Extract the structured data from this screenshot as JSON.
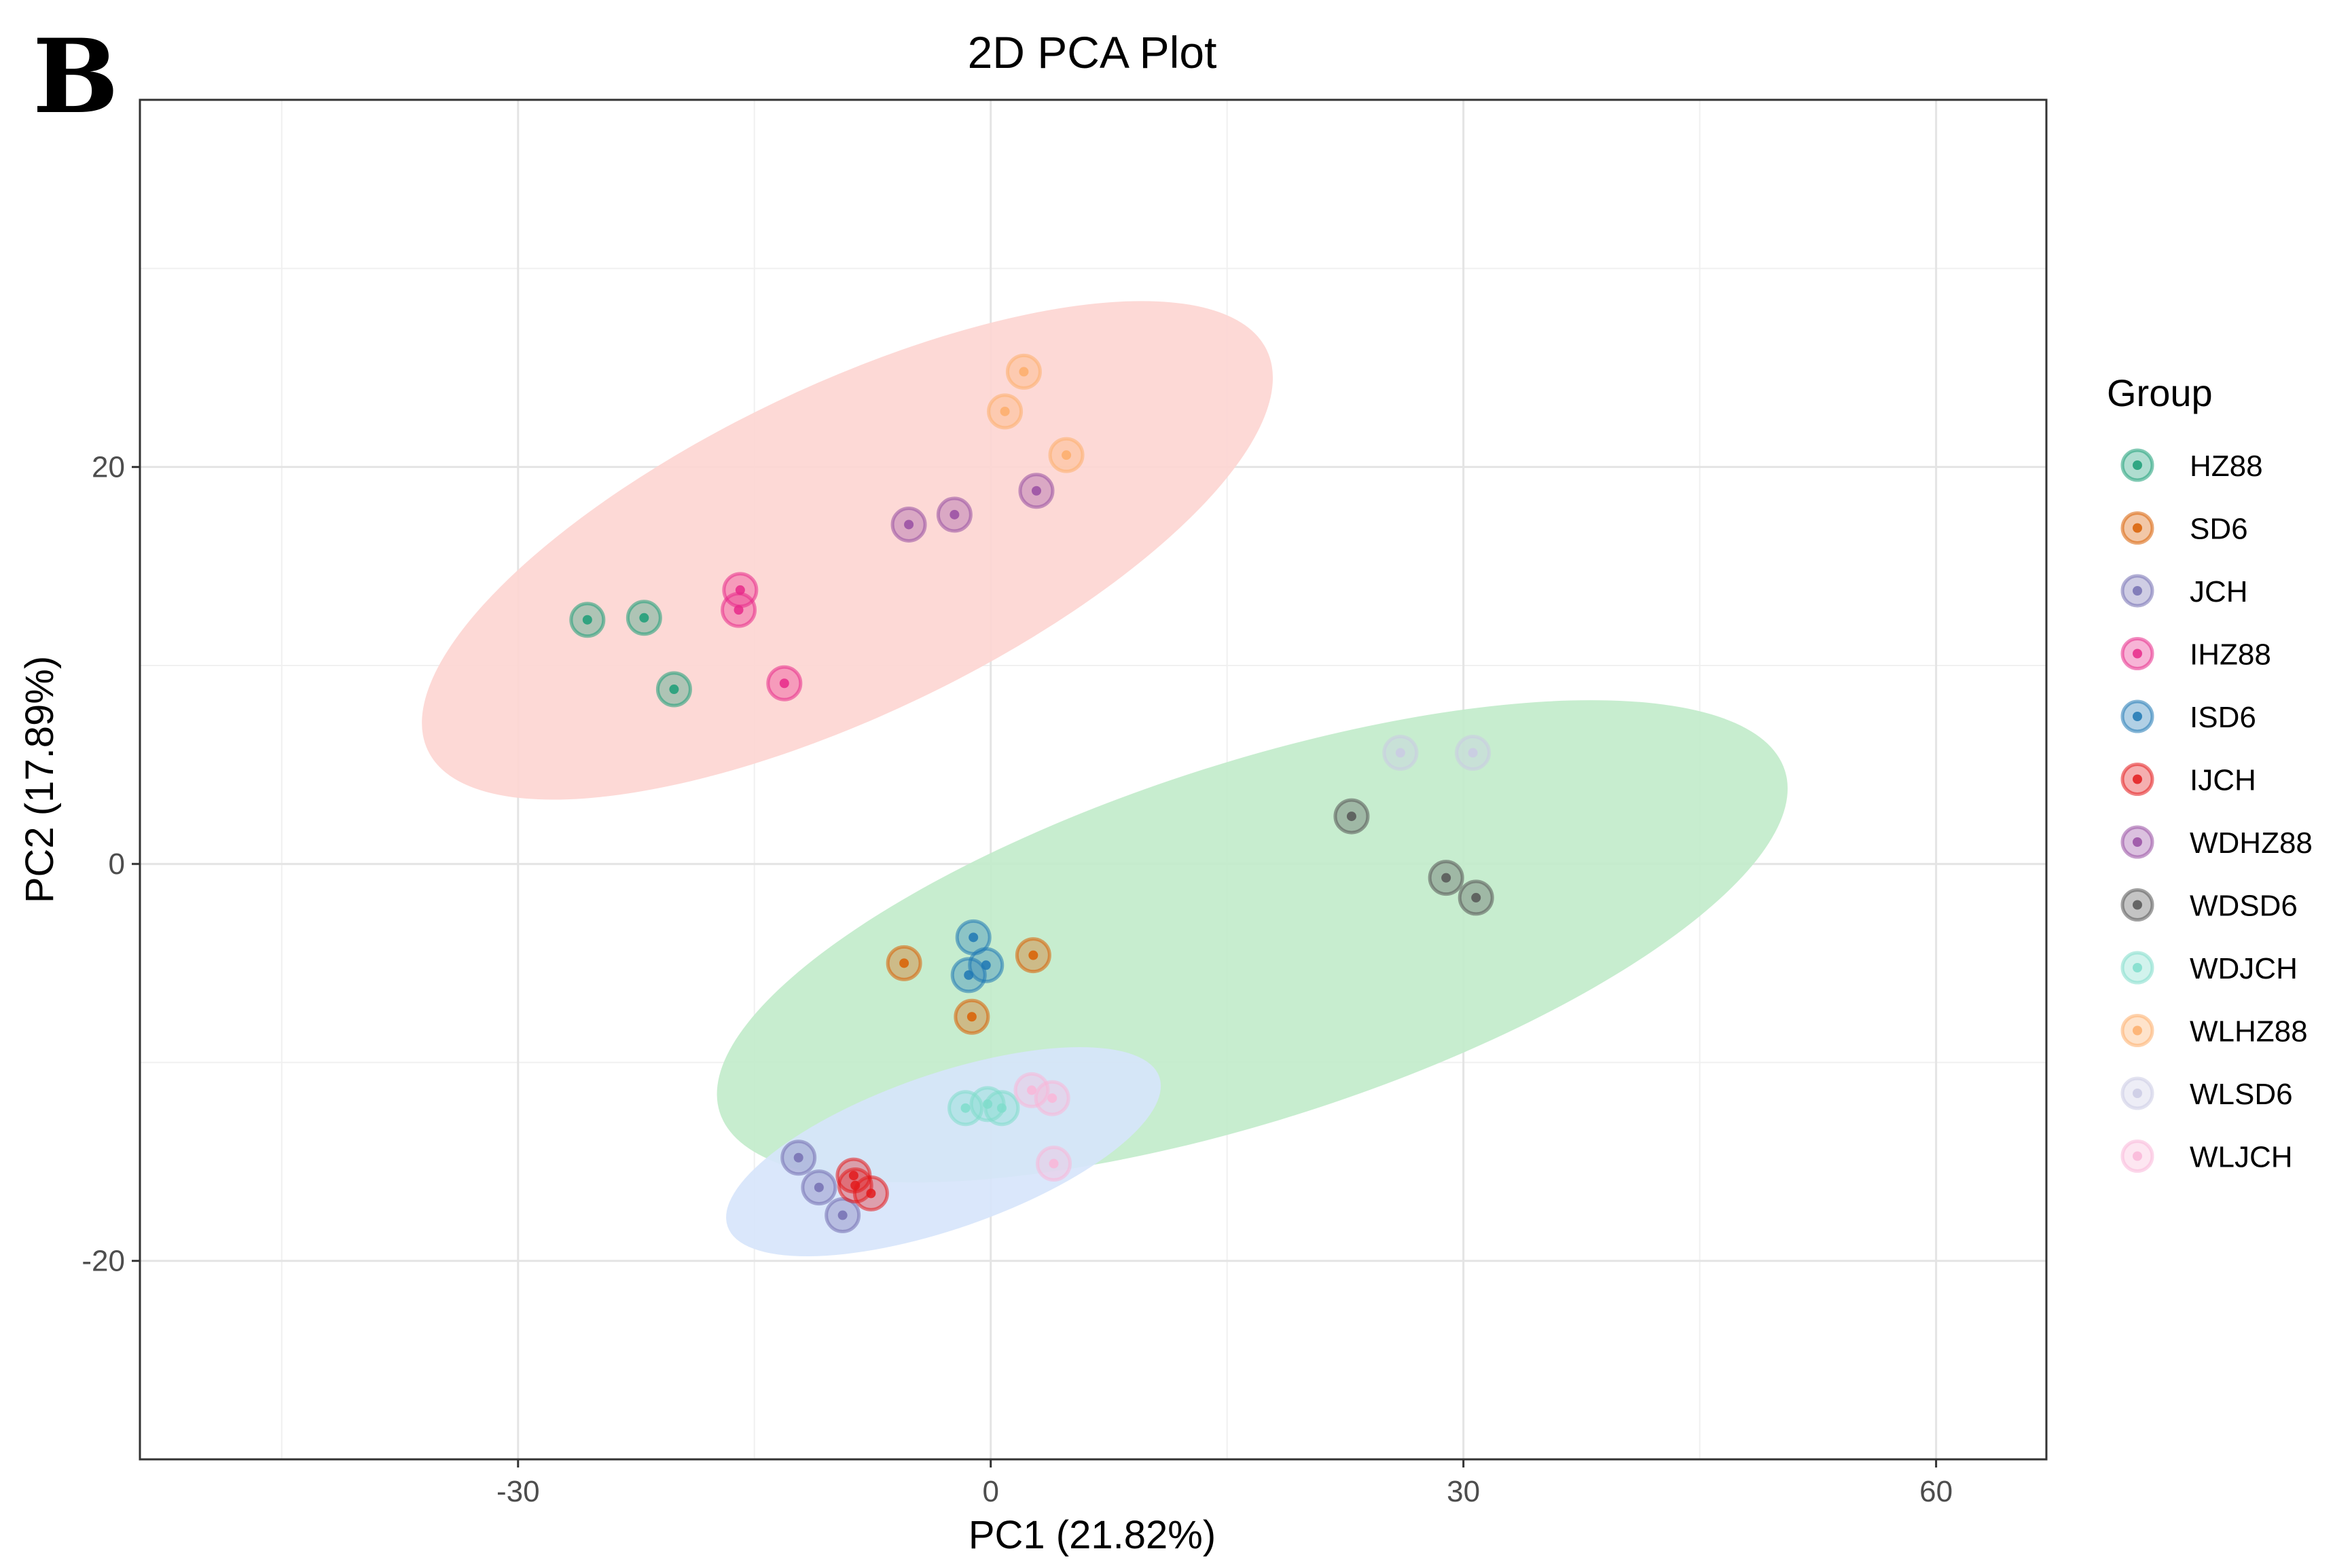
{
  "panel_label": "B",
  "chart_data": {
    "type": "scatter",
    "title": "2D PCA Plot",
    "xlabel": "PC1 (21.82%)",
    "ylabel": "PC2 (17.89%)",
    "xlim": [
      -54,
      67
    ],
    "ylim": [
      -30,
      38.5
    ],
    "xticks": [
      -30,
      0,
      30,
      60
    ],
    "xtick_labels": [
      "-30",
      "0",
      "30",
      "60"
    ],
    "yticks": [
      -20,
      0,
      20
    ],
    "ytick_labels": [
      "-20",
      "0",
      "20"
    ],
    "minor_xgrid": [
      -45,
      -15,
      15,
      45
    ],
    "minor_ygrid": [
      -30,
      -10,
      10,
      30
    ],
    "grid": true,
    "legend_title": "Group",
    "legend_position": "right",
    "ellipses": [
      {
        "name": "ellipse-1",
        "cx": -9.1,
        "cy": 15.8,
        "rx": 29.5,
        "ry": 8.3,
        "angle_deg": 25.5,
        "color": "#FDD5D2"
      },
      {
        "name": "ellipse-2",
        "cx": 16.6,
        "cy": -3.9,
        "rx": 35.5,
        "ry": 9.0,
        "angle_deg": 17.8,
        "color": "#C1EBCA"
      },
      {
        "name": "ellipse-3",
        "cx": -3.0,
        "cy": -14.5,
        "rx": 14.5,
        "ry": 3.9,
        "angle_deg": 19.1,
        "color": "#D6E4FB"
      }
    ],
    "series": [
      {
        "name": "HZ88",
        "color": "#1B9E77",
        "points": [
          [
            -25.6,
            12.3
          ],
          [
            -22.0,
            12.4
          ],
          [
            -20.1,
            8.8
          ]
        ]
      },
      {
        "name": "SD6",
        "color": "#D95F02",
        "points": [
          [
            -5.5,
            -5.0
          ],
          [
            2.7,
            -4.6
          ],
          [
            -1.2,
            -7.7
          ]
        ]
      },
      {
        "name": "JCH",
        "color": "#7570B3",
        "points": [
          [
            -12.2,
            -14.8
          ],
          [
            -10.9,
            -16.3
          ],
          [
            -9.4,
            -17.7
          ]
        ]
      },
      {
        "name": "IHZ88",
        "color": "#E7298A",
        "points": [
          [
            -15.9,
            13.8
          ],
          [
            -16.0,
            12.8
          ],
          [
            -13.1,
            9.1
          ]
        ]
      },
      {
        "name": "ISD6",
        "color": "#1F78B4",
        "points": [
          [
            -1.1,
            -3.7
          ],
          [
            -0.3,
            -5.1
          ],
          [
            -1.4,
            -5.6
          ]
        ]
      },
      {
        "name": "IJCH",
        "color": "#E31A1C",
        "points": [
          [
            -8.7,
            -15.7
          ],
          [
            -8.6,
            -16.2
          ],
          [
            -7.6,
            -16.6
          ]
        ]
      },
      {
        "name": "WDHZ88",
        "color": "#984EA3",
        "points": [
          [
            -5.2,
            17.1
          ],
          [
            -2.3,
            17.6
          ],
          [
            2.9,
            18.8
          ]
        ]
      },
      {
        "name": "WDSD6",
        "color": "#555555",
        "points": [
          [
            22.9,
            2.4
          ],
          [
            28.9,
            -0.7
          ],
          [
            30.8,
            -1.7
          ]
        ]
      },
      {
        "name": "WDJCH",
        "color": "#7FDDCB",
        "points": [
          [
            -1.6,
            -12.3
          ],
          [
            -0.2,
            -12.1
          ],
          [
            0.7,
            -12.3
          ]
        ]
      },
      {
        "name": "WLHZ88",
        "color": "#FDAE6B",
        "points": [
          [
            2.1,
            24.8
          ],
          [
            0.9,
            22.8
          ],
          [
            4.8,
            20.6
          ]
        ]
      },
      {
        "name": "WLSD6",
        "color": "#CACAE4",
        "points": [
          [
            26.0,
            5.6
          ],
          [
            30.6,
            5.6
          ]
        ]
      },
      {
        "name": "WLJCH",
        "color": "#F9B6D8",
        "points": [
          [
            2.6,
            -11.4
          ],
          [
            3.9,
            -11.8
          ],
          [
            4.0,
            -15.1
          ]
        ]
      }
    ]
  }
}
